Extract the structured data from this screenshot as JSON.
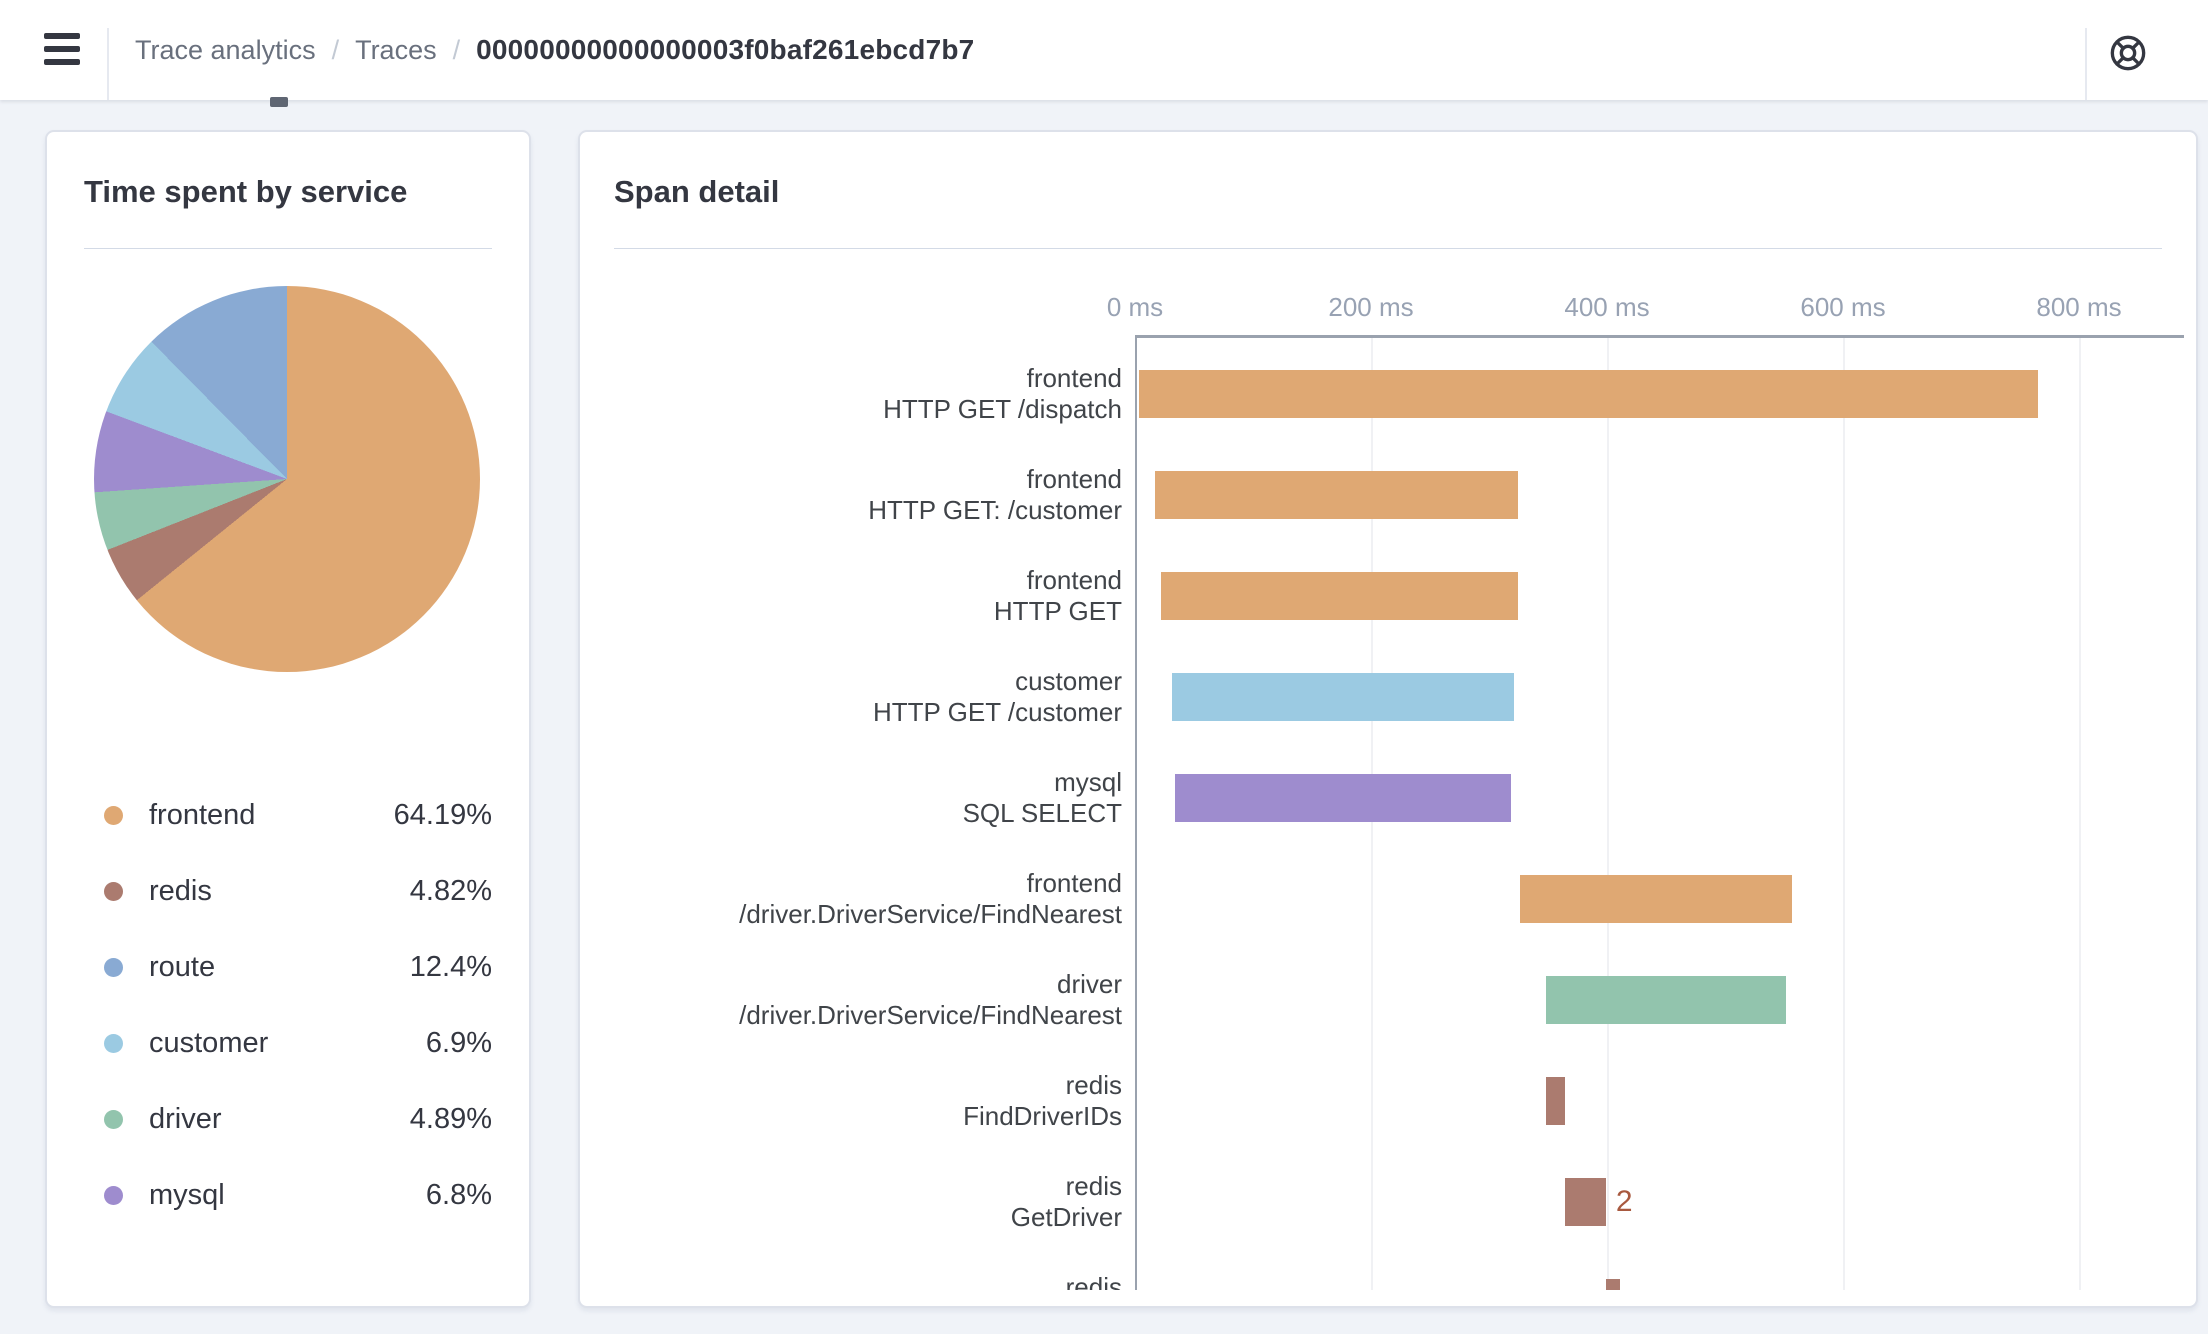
{
  "header": {
    "breadcrumb": {
      "level1": "Trace analytics",
      "separator": "/",
      "level2": "Traces",
      "trace_id": "00000000000000003f0baf261ebcd7b7"
    },
    "menu_icon": "hamburger-menu",
    "help_icon": "life-buoy"
  },
  "colors": {
    "frontend": "#dfa873",
    "redis": "#ab7b6f",
    "route": "#89aad3",
    "customer": "#9bcae2",
    "driver": "#92c4ad",
    "mysql": "#9e8cce",
    "count_annotation": "#a8593f"
  },
  "time_card": {
    "title": "Time spent by service"
  },
  "span_card": {
    "title": "Span detail"
  },
  "legend": {
    "items": [
      {
        "service": "frontend",
        "value": "64.19%"
      },
      {
        "service": "redis",
        "value": "4.82%"
      },
      {
        "service": "route",
        "value": "12.4%"
      },
      {
        "service": "customer",
        "value": "6.9%"
      },
      {
        "service": "driver",
        "value": "4.89%"
      },
      {
        "service": "mysql",
        "value": "6.8%"
      }
    ]
  },
  "chart_data": [
    {
      "type": "pie",
      "title": "Time spent by service",
      "direction": "clockwise",
      "start_angle_deg": 0,
      "slices": [
        {
          "label": "frontend",
          "value_pct": 64.19,
          "color_key": "frontend"
        },
        {
          "label": "redis",
          "value_pct": 4.82,
          "color_key": "redis"
        },
        {
          "label": "driver",
          "value_pct": 4.89,
          "color_key": "driver"
        },
        {
          "label": "mysql",
          "value_pct": 6.8,
          "color_key": "mysql"
        },
        {
          "label": "customer",
          "value_pct": 6.9,
          "color_key": "customer"
        },
        {
          "label": "route",
          "value_pct": 12.4,
          "color_key": "route"
        }
      ],
      "legend_position": "bottom"
    },
    {
      "type": "bar",
      "subtype": "gantt",
      "title": "Span detail",
      "x_unit": "ms",
      "xlim": [
        0,
        890
      ],
      "x_ticks": [
        {
          "ms": 0,
          "label": "0 ms"
        },
        {
          "ms": 200,
          "label": "200 ms"
        },
        {
          "ms": 400,
          "label": "400 ms"
        },
        {
          "ms": 600,
          "label": "600 ms"
        },
        {
          "ms": 800,
          "label": "800 ms"
        }
      ],
      "grid": true,
      "rows": [
        {
          "service": "frontend",
          "operation": "HTTP GET /dispatch",
          "start_ms": 3,
          "end_ms": 765,
          "color_key": "frontend"
        },
        {
          "service": "frontend",
          "operation": "HTTP GET: /customer",
          "start_ms": 17,
          "end_ms": 325,
          "color_key": "frontend"
        },
        {
          "service": "frontend",
          "operation": "HTTP GET",
          "start_ms": 22,
          "end_ms": 325,
          "color_key": "frontend"
        },
        {
          "service": "customer",
          "operation": "HTTP GET /customer",
          "start_ms": 31,
          "end_ms": 321,
          "color_key": "customer"
        },
        {
          "service": "mysql",
          "operation": "SQL SELECT",
          "start_ms": 34,
          "end_ms": 319,
          "color_key": "mysql"
        },
        {
          "service": "frontend",
          "operation": "/driver.DriverService/FindNearest",
          "start_ms": 326,
          "end_ms": 557,
          "color_key": "frontend"
        },
        {
          "service": "driver",
          "operation": "/driver.DriverService/FindNearest",
          "start_ms": 348,
          "end_ms": 552,
          "color_key": "driver"
        },
        {
          "service": "redis",
          "operation": "FindDriverIDs",
          "start_ms": 348,
          "end_ms": 364,
          "color_key": "redis"
        },
        {
          "service": "redis",
          "operation": "GetDriver",
          "start_ms": 364,
          "end_ms": 399,
          "color_key": "redis",
          "count_label": "2"
        },
        {
          "service": "redis",
          "operation": "",
          "start_ms": 399,
          "end_ms": 411,
          "color_key": "redis",
          "clipped": true
        }
      ]
    }
  ]
}
